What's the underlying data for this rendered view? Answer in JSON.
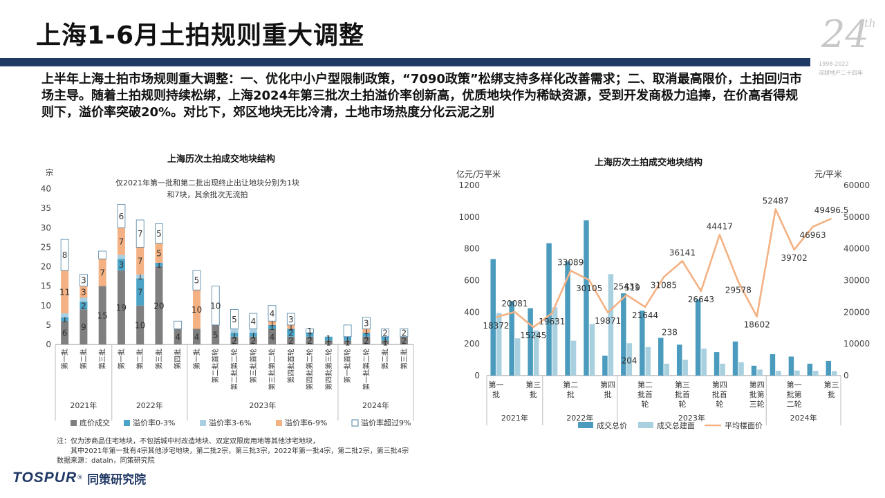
{
  "page": {
    "title": "上海1-6月土拍规则重大调整",
    "summary": "上半年上海土拍市场规则重大调整：一、优化中小户型限制政策，“7090政策”松绑支持多样化改善需求；二、取消最高限价，土拍回归市场主导。随着土拍规则持续松绑，上海2024年第三批次土拍溢价率创新高，优质地块作为稀缺资源，受到开发商极力追捧，在价高者得规则下，溢价率突破20%。对比下，郊区地块无比冷清，土地市场热度分化云泥之别",
    "logo": {
      "number": "24",
      "suffix": "th",
      "years": "1998-2022",
      "tagline": "深耕地产二十四年"
    },
    "notes": [
      "注：仅为涉商品住宅地块，不包括城中村改造地块、双定双限房用地等其他涉宅地块，",
      "其中2021年第一批有4宗其他涉宅地块，第二批2宗，第三批3宗，2022年第一批4宗，第二批2宗，第三批4宗",
      "数据来源：dataln，同策研究院"
    ],
    "brand": {
      "en": "TOSPUR",
      "reg": "®",
      "cn": "同策研究院"
    }
  },
  "chart_data": [
    {
      "type": "bar",
      "stacked": true,
      "title": "上海历次土拍成交地块结构",
      "ylabel": "宗",
      "ylim": [
        0,
        40
      ],
      "yticks": [
        0,
        5,
        10,
        15,
        20,
        25,
        30,
        35,
        40
      ],
      "annotation": "仅2021年第一批和第二批出现终止出让地块分别为1块和7块，其余批次无流拍",
      "categories": [
        "第一批",
        "第二批",
        "第三批",
        "第一批",
        "第二批",
        "第三批",
        "第四批",
        "第一批",
        "第二批首轮",
        "第二批第二轮",
        "第三批首轮",
        "第三批第二轮",
        "第四批首轮",
        "第四批第二轮",
        "第四批第三轮",
        "第一批首轮",
        "第一批第二轮",
        "第二批",
        "第三批"
      ],
      "groups": [
        {
          "label": "2021年",
          "count": 3
        },
        {
          "label": "2022年",
          "count": 4
        },
        {
          "label": "2023年",
          "count": 8
        },
        {
          "label": "2024年",
          "count": 4
        }
      ],
      "series": [
        {
          "name": "底价成交",
          "color": "#7f7f7f",
          "values": [
            6,
            9,
            15,
            19,
            10,
            20,
            4,
            4,
            5,
            2,
            2,
            4,
            2,
            2,
            1,
            1,
            2,
            1,
            2
          ]
        },
        {
          "name": "溢价率0-3%",
          "color": "#4ba3c7",
          "values": [
            1,
            2,
            0,
            3,
            7,
            1,
            0,
            0,
            0,
            1,
            1,
            1,
            2,
            1,
            1,
            1,
            1,
            1,
            0
          ]
        },
        {
          "name": "溢价率3-6%",
          "color": "#a9cfe3",
          "values": [
            1,
            1,
            0,
            1,
            1,
            0,
            0,
            0,
            0,
            1,
            1,
            0,
            0,
            0,
            0,
            0,
            0,
            0,
            0
          ]
        },
        {
          "name": "溢价率6-9%",
          "color": "#f4b183",
          "values": [
            11,
            3,
            7,
            7,
            7,
            5,
            0,
            10,
            0,
            0,
            0,
            1,
            1,
            0,
            0,
            0,
            1,
            0,
            0
          ]
        },
        {
          "name": "溢价率超过9%",
          "color": "#ffffff",
          "values": [
            8,
            3,
            2,
            6,
            7,
            5,
            2,
            5,
            10,
            5,
            4,
            4,
            3,
            1,
            0,
            3,
            3,
            2,
            2
          ]
        }
      ],
      "labels": [
        [
          6,
          1,
          null,
          11,
          8
        ],
        [
          9,
          2,
          null,
          3,
          3
        ],
        [
          15,
          null,
          null,
          7,
          null
        ],
        [
          19,
          3,
          null,
          7,
          6
        ],
        [
          10,
          7,
          1,
          7,
          7
        ],
        [
          20,
          1,
          null,
          5,
          5
        ],
        [
          4,
          null,
          null,
          null,
          null
        ],
        [
          4,
          null,
          null,
          10,
          5
        ],
        [
          5,
          null,
          null,
          null,
          10
        ],
        [
          2,
          1,
          null,
          null,
          5
        ],
        [
          2,
          1,
          null,
          null,
          4
        ],
        [
          4,
          1,
          null,
          1,
          4
        ],
        [
          2,
          2,
          null,
          1,
          3
        ],
        [
          2,
          1,
          null,
          null,
          1
        ],
        [
          1,
          1,
          null,
          null,
          null
        ],
        [
          1,
          1,
          null,
          null,
          null
        ],
        [
          2,
          1,
          null,
          1,
          3
        ],
        [
          1,
          1,
          null,
          null,
          2
        ],
        [
          2,
          null,
          null,
          null,
          2
        ]
      ]
    },
    {
      "type": "bar-line",
      "title": "上海历次土拍成交地块结构",
      "ylabel_left": "亿元/万平米",
      "ylabel_right": "元/平米",
      "ylim_left": [
        0,
        1200
      ],
      "yticks_left": [
        0,
        200,
        400,
        600,
        800,
        1000,
        1200
      ],
      "ylim_right": [
        0,
        60000
      ],
      "yticks_right": [
        0,
        10000,
        20000,
        30000,
        40000,
        50000,
        60000
      ],
      "categories": [
        "第一批",
        "",
        "第三批",
        "",
        "第二批",
        "",
        "第四批",
        "",
        "第二批首轮",
        "",
        "第三批首轮",
        "",
        "第四批首轮",
        "",
        "第四批第三轮",
        "",
        "第一批第二轮",
        "",
        "第三批"
      ],
      "category_labels": [
        "第一\n批",
        "",
        "第三\n批",
        "",
        "第二\n批",
        "",
        "第四\n批",
        "",
        "第二\n批首\n轮",
        "",
        "第三\n批首\n轮",
        "",
        "第四\n批首\n轮",
        "",
        "第四\n批第\n三轮",
        "",
        "第一\n批第\n二轮",
        "",
        "第三\n批"
      ],
      "groups": [
        {
          "label": "2021年",
          "count": 3
        },
        {
          "label": "2022年",
          "count": 4
        },
        {
          "label": "2023年",
          "count": 8
        },
        {
          "label": "2024年",
          "count": 4
        }
      ],
      "series": [
        {
          "name": "成交总价",
          "kind": "bar",
          "axis": "left",
          "color": "#4a9bbd",
          "values": [
            735,
            470,
            425,
            835,
            720,
            980,
            125,
            519,
            410,
            238,
            195,
            480,
            148,
            215,
            62,
            135,
            120,
            75,
            92
          ]
        },
        {
          "name": "成交总建面",
          "kind": "bar",
          "axis": "left",
          "color": "#a8d0df",
          "values": [
            395,
            235,
            285,
            430,
            220,
            325,
            640,
            204,
            180,
            75,
            100,
            170,
            75,
            85,
            38,
            30,
            32,
            30,
            28
          ]
        },
        {
          "name": "平均楼面价",
          "kind": "line",
          "axis": "right",
          "color": "#f4b183",
          "values": [
            18372,
            20081,
            15245,
            19631,
            33089,
            30105,
            19871,
            25431,
            21644,
            31085,
            36141,
            26643,
            44417,
            29578,
            18602,
            52487,
            39702,
            46963,
            49496
          ]
        }
      ],
      "bar_labels": [
        null,
        null,
        null,
        null,
        null,
        null,
        null,
        "519",
        null,
        "238",
        null,
        null,
        null,
        null,
        null,
        null,
        null,
        null,
        null
      ],
      "bar2_labels": [
        null,
        null,
        null,
        null,
        null,
        null,
        null,
        "204",
        null,
        null,
        null,
        null,
        null,
        null,
        null,
        null,
        null,
        null,
        null
      ],
      "line_labels": [
        "18372",
        "20081",
        "15245",
        "19631",
        "33089",
        "30105",
        "19871",
        "25431",
        "21644",
        "31085",
        "36141",
        "26643",
        "44417",
        "29578",
        "18602",
        "52487",
        "39702",
        "46963",
        "49496.5"
      ]
    }
  ]
}
